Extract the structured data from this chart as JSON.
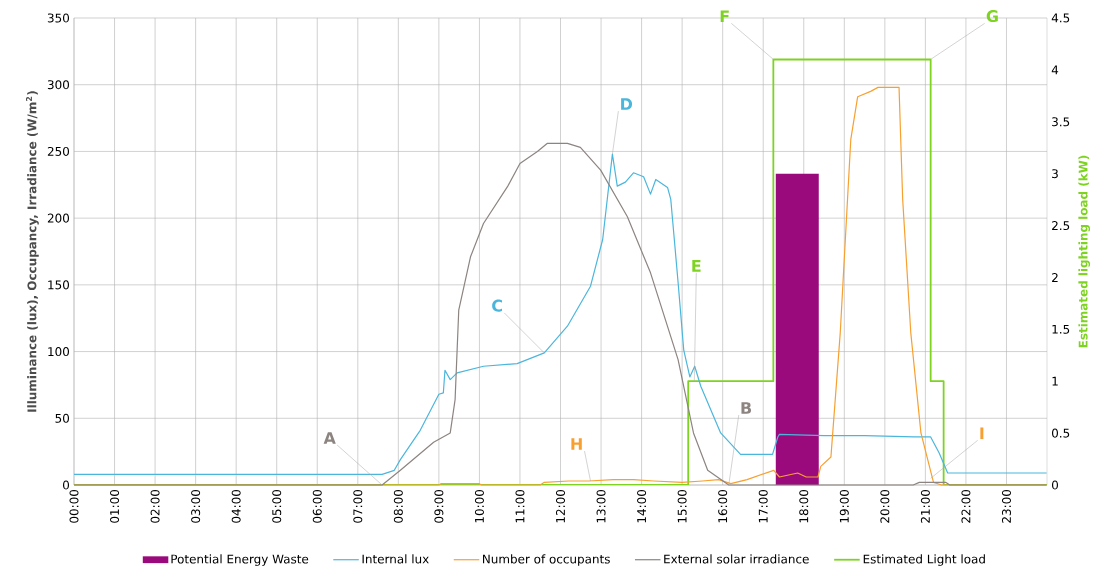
{
  "chart_data": {
    "type": "line",
    "ylabel": "Illuminance (lux), Occupancy, Irradiance (W/m$^{2}$)",
    "y2label": "Estimated lighting load (kW)",
    "xlim": [
      0,
      24
    ],
    "xticks": [
      {
        "value": 0,
        "label": "00:00"
      },
      {
        "value": 1,
        "label": "01:00"
      },
      {
        "value": 2,
        "label": "02:00"
      },
      {
        "value": 3,
        "label": "03:00"
      },
      {
        "value": 4,
        "label": "04:00"
      },
      {
        "value": 5,
        "label": "05:00"
      },
      {
        "value": 6,
        "label": "06:00"
      },
      {
        "value": 7,
        "label": "07:00"
      },
      {
        "value": 8,
        "label": "08:00"
      },
      {
        "value": 9,
        "label": "09:00"
      },
      {
        "value": 10,
        "label": "10:00"
      },
      {
        "value": 11,
        "label": "11:00"
      },
      {
        "value": 12,
        "label": "12:00"
      },
      {
        "value": 13,
        "label": "13:00"
      },
      {
        "value": 14,
        "label": "14:00"
      },
      {
        "value": 15,
        "label": "15:00"
      },
      {
        "value": 16,
        "label": "16:00"
      },
      {
        "value": 17,
        "label": "17:00"
      },
      {
        "value": 18,
        "label": "18:00"
      },
      {
        "value": 19,
        "label": "19:00"
      },
      {
        "value": 20,
        "label": "20:00"
      },
      {
        "value": 21,
        "label": "21:00"
      },
      {
        "value": 22,
        "label": "22:00"
      },
      {
        "value": 23,
        "label": "23:00"
      }
    ],
    "ylim": [
      0,
      350
    ],
    "yticks": [
      0,
      50,
      100,
      150,
      200,
      250,
      300,
      350
    ],
    "y2lim": [
      0,
      4.5
    ],
    "y2ticks": [
      0,
      0.5,
      1,
      1.5,
      2,
      2.5,
      3,
      3.5,
      4,
      4.5
    ],
    "grid": true,
    "legend": "bottom",
    "series": [
      {
        "name": "Potential Energy Waste",
        "type": "bar",
        "axis": "y2",
        "color": "#9b0a7d",
        "x": [
          17.84
        ],
        "values": [
          3
        ]
      },
      {
        "name": "Internal lux",
        "color": "#4bb6dc",
        "x": [
          0,
          7.6,
          7.9,
          8.05,
          8.54,
          9.0,
          9.11,
          9.15,
          9.28,
          9.45,
          10.1,
          10.93,
          11.6,
          12.17,
          12.74,
          13.04,
          13.28,
          13.4,
          13.6,
          13.8,
          14.05,
          14.22,
          14.35,
          14.64,
          14.72,
          14.9,
          15.04,
          15.19,
          15.31,
          15.46,
          15.95,
          16.44,
          17.23,
          17.36,
          17.4,
          18.5,
          19.5,
          20.72,
          21.13,
          21.34,
          21.55,
          23.99
        ],
        "values": [
          8,
          8,
          11,
          19,
          41,
          68,
          69,
          86,
          79,
          84,
          89,
          91,
          99,
          119,
          149,
          184,
          248,
          224,
          227,
          234,
          231,
          218,
          229,
          223,
          214,
          152,
          101,
          81,
          89,
          74,
          39,
          23,
          23,
          36,
          38,
          37,
          37,
          36,
          36,
          24,
          9,
          9
        ]
      },
      {
        "name": "Number of occupants",
        "color": "#f7a030",
        "x": [
          0,
          9.0,
          9.05,
          10.0,
          10.05,
          11.5,
          11.6,
          12.2,
          12.7,
          13.3,
          13.8,
          14.3,
          15.0,
          15.5,
          15.9,
          16.2,
          16.6,
          17.26,
          17.4,
          17.85,
          18.06,
          18.35,
          18.42,
          18.67,
          18.9,
          19.16,
          19.33,
          19.65,
          19.83,
          20.35,
          20.44,
          20.64,
          20.89,
          21.2,
          21.4,
          23.99
        ],
        "values": [
          0,
          0,
          1,
          1,
          0,
          0,
          2,
          3,
          3,
          4,
          4,
          3,
          2,
          3,
          4,
          1,
          4,
          11,
          6,
          9,
          6,
          6,
          14,
          21,
          114,
          259,
          291,
          295,
          298,
          298,
          214,
          114,
          39,
          2,
          0,
          0
        ]
      },
      {
        "name": "External solar irradiance",
        "color": "#8c8480",
        "x": [
          0,
          7.6,
          8.05,
          8.87,
          9.28,
          9.4,
          9.49,
          9.78,
          10.1,
          10.7,
          11.0,
          11.43,
          11.67,
          12.17,
          12.49,
          12.99,
          13.65,
          14.22,
          14.9,
          15.28,
          15.63,
          16.15,
          20.7,
          20.85,
          21.5,
          21.6,
          23.99
        ],
        "values": [
          0,
          0,
          11,
          32,
          39,
          64,
          131,
          171,
          196,
          224,
          241,
          250,
          256,
          256,
          253,
          236,
          201,
          159,
          94,
          39,
          11,
          0,
          0,
          2,
          2,
          0,
          0
        ]
      },
      {
        "name": "Estimated Light load",
        "type": "step",
        "axis": "y2",
        "color": "#7ed321",
        "x": [
          0,
          15.15,
          17.25,
          21.13,
          21.45,
          24
        ],
        "values": [
          0,
          1,
          4.1,
          1,
          0,
          0
        ]
      }
    ],
    "annotations": [
      {
        "text": "A",
        "x": 7.6,
        "y": 0
      },
      {
        "text": "B",
        "x": 16.15,
        "y": 0
      },
      {
        "text": "C",
        "x": 11.6,
        "y": 99
      },
      {
        "text": "D",
        "x": 13.28,
        "y": 248
      },
      {
        "text": "E",
        "x": 15.3,
        "y": 78
      },
      {
        "text": "F",
        "x": 17.25,
        "y": 319
      },
      {
        "text": "G",
        "x": 21.13,
        "y": 319
      },
      {
        "text": "H",
        "x": 12.74,
        "y": 3
      },
      {
        "text": "I",
        "x": 21.13,
        "y": 5
      }
    ]
  }
}
